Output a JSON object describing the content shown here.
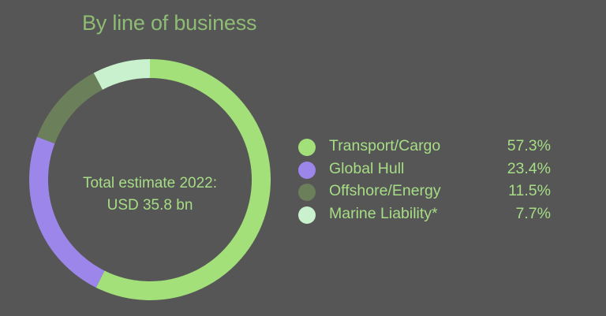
{
  "chart_data": {
    "type": "pie",
    "title": "By line of business",
    "center_label_line1": "Total estimate 2022:",
    "center_label_line2": "USD 35.8 bn",
    "categories": [
      "Transport/Cargo",
      "Global Hull",
      "Offshore/Energy",
      "Marine Liability*"
    ],
    "values": [
      57.3,
      23.4,
      11.5,
      7.7
    ],
    "value_labels": [
      "57.3%",
      "23.4%",
      "11.5%",
      "7.7%"
    ],
    "colors": [
      "#a3e07a",
      "#9d86ea",
      "#6b7f5b",
      "#c9f1cd"
    ],
    "legend_placement": "right"
  }
}
